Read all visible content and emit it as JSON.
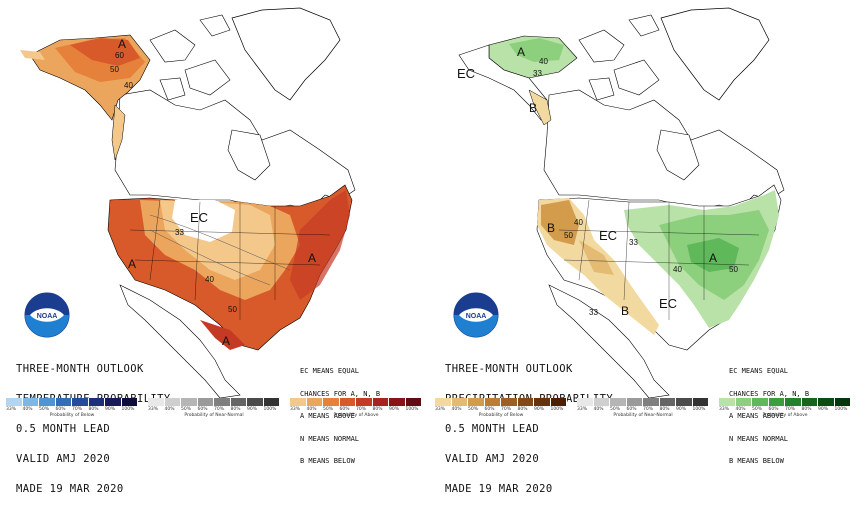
{
  "panels": [
    {
      "id": "temperature",
      "title_lines": [
        "THREE-MONTH OUTLOOK",
        "TEMPERATURE PROBABILITY",
        "0.5 MONTH LEAD",
        "VALID AMJ 2020",
        "MADE 19 MAR 2020"
      ],
      "notes": [
        "EC MEANS EQUAL",
        "CHANCES FOR A, N, B",
        "A MEANS ABOVE",
        "N MEANS NORMAL",
        "B MEANS BELOW"
      ],
      "map_labels": {
        "ec": "EC",
        "a1": "A",
        "a2": "A",
        "a3": "A",
        "a4": "A",
        "c60": "60",
        "c50": "50",
        "c40": "40",
        "c33": "33",
        "c40b": "40",
        "c50b": "50"
      },
      "colorbars": [
        {
          "label": "Probability of Below",
          "ticks": [
            "33%",
            "40%",
            "50%",
            "60%",
            "70%",
            "80%",
            "90%",
            "100%"
          ],
          "colors": [
            "#b3d5f0",
            "#7cb8e6",
            "#4d95d4",
            "#2f6fb8",
            "#244c9a",
            "#1d2f7a",
            "#161a5a",
            "#0d0d38"
          ]
        },
        {
          "label": "Probability of Near-Normal",
          "ticks": [
            "33%",
            "40%",
            "50%",
            "60%",
            "70%",
            "80%",
            "90%",
            "100%"
          ],
          "colors": [
            "#e8e8e8",
            "#cfcfcf",
            "#b5b5b5",
            "#9a9a9a",
            "#7f7f7f",
            "#656565",
            "#4b4b4b",
            "#333333"
          ]
        },
        {
          "label": "Probability of Above",
          "ticks": [
            "33%",
            "40%",
            "50%",
            "60%",
            "70%",
            "80%",
            "90%",
            "100%"
          ],
          "colors": [
            "#f4c78a",
            "#eca55c",
            "#e5813a",
            "#d85a2a",
            "#c43a24",
            "#a82220",
            "#86141a",
            "#600c12"
          ]
        }
      ]
    },
    {
      "id": "precipitation",
      "title_lines": [
        "THREE-MONTH OUTLOOK",
        "PRECIPITATION PROBABILITY",
        "0.5 MONTH LEAD",
        "VALID AMJ 2020",
        "MADE 19 MAR 2020"
      ],
      "notes": [
        "EC MEANS EQUAL",
        "CHANCES FOR A, N, B",
        "A MEANS ABOVE",
        "N MEANS NORMAL",
        "B MEANS BELOW"
      ],
      "map_labels": {
        "ec1": "EC",
        "ec2": "EC",
        "ec3": "EC",
        "b1": "B",
        "b2": "B",
        "b3": "B",
        "a1": "A",
        "a2": "A",
        "c40": "40",
        "c33": "33",
        "c50": "50",
        "c40b": "40",
        "c33b": "33",
        "c40c": "40",
        "c50b": "50",
        "c33c": "33"
      },
      "colorbars": [
        {
          "label": "Probability of Below",
          "ticks": [
            "33%",
            "40%",
            "50%",
            "60%",
            "70%",
            "80%",
            "90%",
            "100%"
          ],
          "colors": [
            "#f1d9a0",
            "#e4bb72",
            "#d39b4c",
            "#bd7b33",
            "#a05f22",
            "#844716",
            "#67320d",
            "#4a2106"
          ]
        },
        {
          "label": "Probability of Near-Normal",
          "ticks": [
            "33%",
            "40%",
            "50%",
            "60%",
            "70%",
            "80%",
            "90%",
            "100%"
          ],
          "colors": [
            "#e8e8e8",
            "#cfcfcf",
            "#b5b5b5",
            "#9a9a9a",
            "#7f7f7f",
            "#656565",
            "#4b4b4b",
            "#333333"
          ]
        },
        {
          "label": "Probability of Above",
          "ticks": [
            "33%",
            "40%",
            "50%",
            "60%",
            "70%",
            "80%",
            "90%",
            "100%"
          ],
          "colors": [
            "#b8e2a8",
            "#8ccf7d",
            "#5fb95a",
            "#3a9e3e",
            "#23822c",
            "#14661f",
            "#0b4c15",
            "#06340d"
          ]
        }
      ]
    }
  ],
  "colors": {
    "land": "#ffffff",
    "outline": "#000000",
    "water": "#ffffff"
  }
}
